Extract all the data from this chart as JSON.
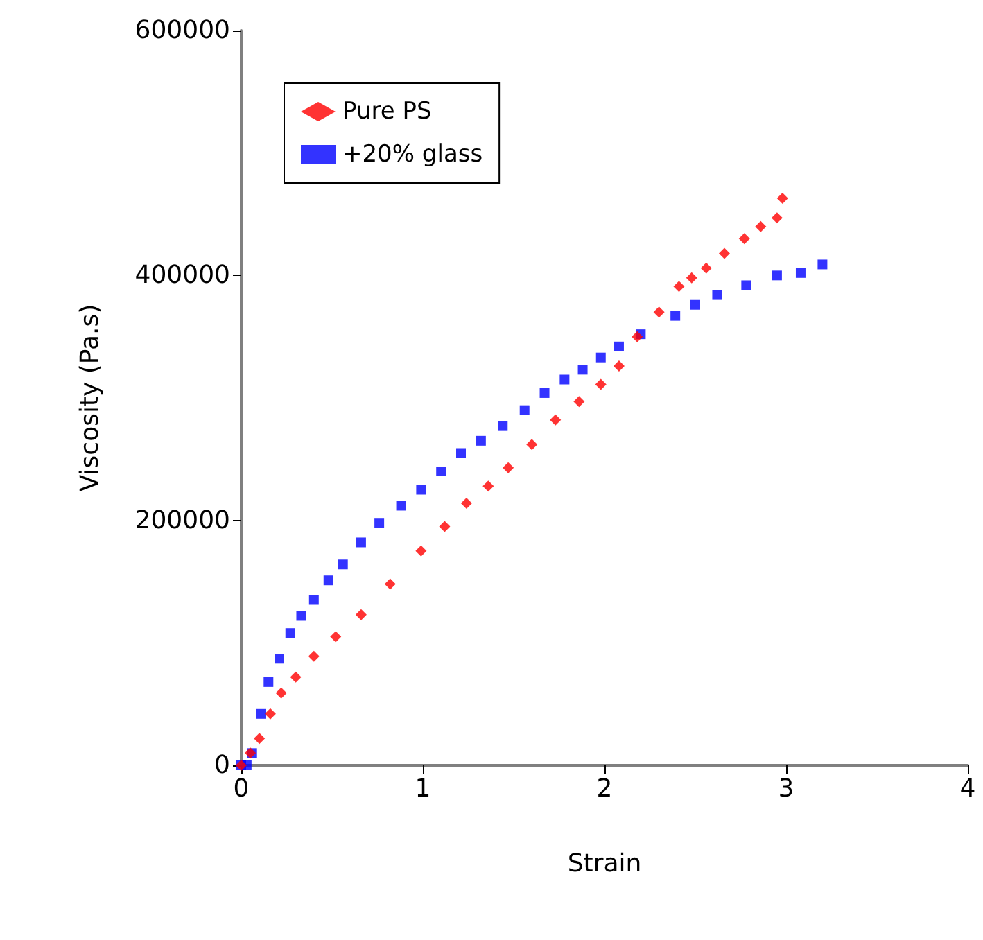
{
  "chart_data": {
    "type": "scatter",
    "xlabel": "Strain",
    "ylabel": "Viscosity (Pa.s)",
    "xlim": [
      0,
      4
    ],
    "xticks": [
      0,
      1,
      2,
      3,
      4
    ],
    "ylim": [
      0,
      600000
    ],
    "yticks": [
      0,
      200000,
      400000,
      600000
    ],
    "grid": false,
    "legend": "top left",
    "series": [
      {
        "name": "Pure PS",
        "color": "#ff0000",
        "marker": "diamond",
        "x": [
          0,
          0.05,
          0.1,
          0.16,
          0.22,
          0.3,
          0.4,
          0.52,
          0.66,
          0.82,
          0.99,
          1.12,
          1.24,
          1.36,
          1.47,
          1.6,
          1.73,
          1.86,
          1.98,
          2.08,
          2.18,
          2.3,
          2.41,
          2.48,
          2.56,
          2.66,
          2.77,
          2.86,
          2.95,
          2.98
        ],
        "values": [
          0,
          10000,
          22000,
          42000,
          59000,
          72000,
          89000,
          105000,
          123000,
          148000,
          175000,
          195000,
          214000,
          228000,
          243000,
          262000,
          282000,
          297000,
          311000,
          326000,
          350000,
          370000,
          391000,
          398000,
          406000,
          418000,
          430000,
          440000,
          447000,
          463000
        ]
      },
      {
        "name": "+20% glass",
        "color": "#0000ff",
        "marker": "square",
        "x": [
          0,
          0.03,
          0.06,
          0.11,
          0.15,
          0.21,
          0.27,
          0.33,
          0.4,
          0.48,
          0.56,
          0.66,
          0.76,
          0.88,
          0.99,
          1.1,
          1.21,
          1.32,
          1.44,
          1.56,
          1.67,
          1.78,
          1.88,
          1.98,
          2.08,
          2.2,
          2.39,
          2.5,
          2.62,
          2.78,
          2.95,
          3.08,
          3.2
        ],
        "values": [
          0,
          0,
          10000,
          42000,
          68000,
          87000,
          108000,
          122000,
          135000,
          151000,
          164000,
          182000,
          198000,
          212000,
          225000,
          240000,
          255000,
          265000,
          277000,
          290000,
          304000,
          315000,
          323000,
          333000,
          342000,
          352000,
          367000,
          376000,
          384000,
          392000,
          400000,
          402000,
          409000
        ]
      }
    ]
  }
}
